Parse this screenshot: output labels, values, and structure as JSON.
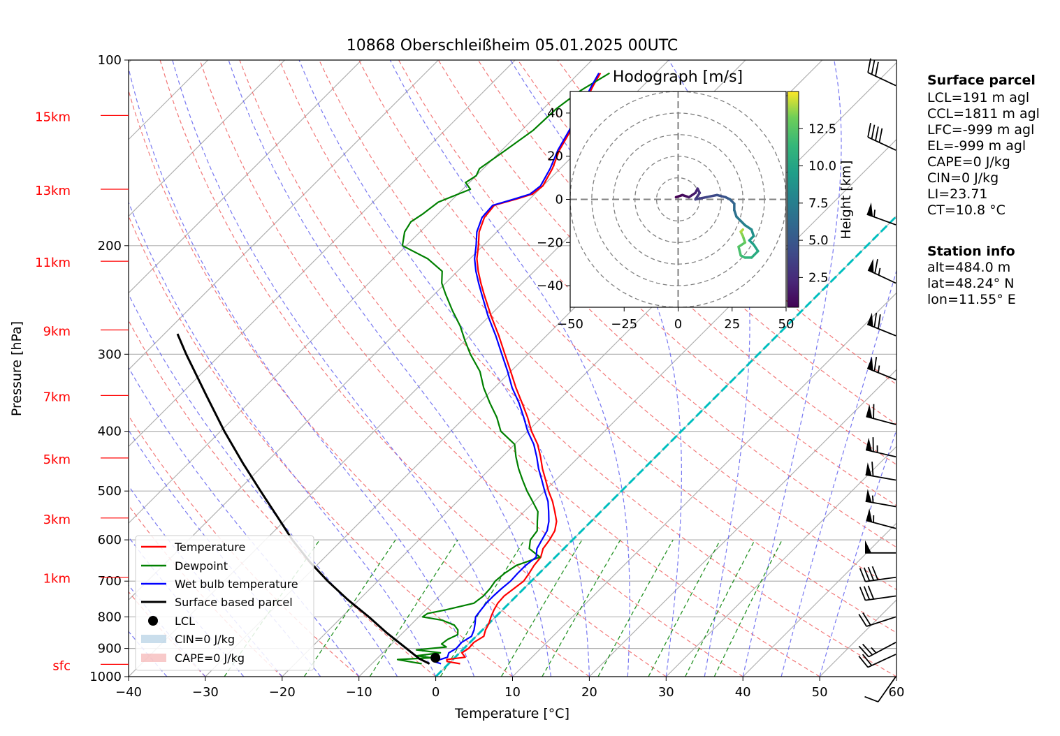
{
  "chart_data": {
    "type": "skewt",
    "title": "10868 Oberschleißheim 05.01.2025 00UTC",
    "xlabel": "Temperature [°C]",
    "ylabel": "Pressure [hPa]",
    "xlim": [
      -40,
      60
    ],
    "ylim": [
      1000,
      100
    ],
    "x_ticks": [
      -40,
      -30,
      -20,
      -10,
      0,
      10,
      20,
      30,
      40,
      50,
      60
    ],
    "x_tick_labels": [
      "−40",
      "−30",
      "−20",
      "−10",
      "0",
      "10",
      "20",
      "30",
      "40",
      "50",
      "60"
    ],
    "y_ticks": [
      100,
      200,
      300,
      400,
      500,
      600,
      700,
      800,
      900,
      1000
    ],
    "height_labels": [
      {
        "label": "15km",
        "p": 123
      },
      {
        "label": "13km",
        "p": 162
      },
      {
        "label": "11km",
        "p": 212
      },
      {
        "label": "9km",
        "p": 274
      },
      {
        "label": "7km",
        "p": 350
      },
      {
        "label": "5km",
        "p": 442
      },
      {
        "label": "3km",
        "p": 553
      },
      {
        "label": "1km",
        "p": 690
      },
      {
        "label": "sfc",
        "p": 955
      }
    ],
    "height_label_color": "#ff0000",
    "series": [
      {
        "name": "Temperature",
        "color": "#ff0000",
        "points": [
          [
            953,
            1.5
          ],
          [
            945,
            -0.5
          ],
          [
            938,
            -0.8
          ],
          [
            930,
            1.3
          ],
          [
            915,
            0.3
          ],
          [
            900,
            0.6
          ],
          [
            880,
            0.5
          ],
          [
            860,
            1.0
          ],
          [
            840,
            0.4
          ],
          [
            820,
            0.0
          ],
          [
            800,
            -0.6
          ],
          [
            780,
            -1.1
          ],
          [
            760,
            -1.5
          ],
          [
            740,
            -1.6
          ],
          [
            720,
            -1.3
          ],
          [
            700,
            -1.0
          ],
          [
            680,
            -1.3
          ],
          [
            660,
            -1.7
          ],
          [
            640,
            -1.9
          ],
          [
            620,
            -2.7
          ],
          [
            600,
            -3.0
          ],
          [
            580,
            -3.5
          ],
          [
            560,
            -4.5
          ],
          [
            540,
            -6.0
          ],
          [
            520,
            -7.6
          ],
          [
            500,
            -9.5
          ],
          [
            480,
            -11.3
          ],
          [
            460,
            -13.2
          ],
          [
            440,
            -15.0
          ],
          [
            420,
            -17.0
          ],
          [
            400,
            -19.5
          ],
          [
            380,
            -21.8
          ],
          [
            360,
            -24.4
          ],
          [
            340,
            -27.2
          ],
          [
            320,
            -30.0
          ],
          [
            300,
            -33.0
          ],
          [
            280,
            -36.2
          ],
          [
            260,
            -39.8
          ],
          [
            240,
            -43.5
          ],
          [
            230,
            -45.4
          ],
          [
            220,
            -47.3
          ],
          [
            210,
            -49.1
          ],
          [
            200,
            -50.6
          ],
          [
            190,
            -52.3
          ],
          [
            180,
            -53.5
          ],
          [
            172,
            -53.8
          ],
          [
            168,
            -51.7
          ],
          [
            165,
            -50.3
          ],
          [
            160,
            -50.0
          ],
          [
            150,
            -51.0
          ],
          [
            140,
            -52.5
          ],
          [
            130,
            -53.6
          ],
          [
            120,
            -55.0
          ],
          [
            110,
            -56.5
          ],
          [
            105,
            -57.2
          ]
        ]
      },
      {
        "name": "Dewpoint",
        "color": "#008000",
        "points": [
          [
            953,
            -3.5
          ],
          [
            945,
            -5.5
          ],
          [
            938,
            -7.2
          ],
          [
            932,
            -3.0
          ],
          [
            925,
            -5.2
          ],
          [
            915,
            -2.5
          ],
          [
            905,
            -6.0
          ],
          [
            895,
            -2.5
          ],
          [
            885,
            -3.5
          ],
          [
            870,
            -3.3
          ],
          [
            855,
            -2.6
          ],
          [
            840,
            -3.2
          ],
          [
            825,
            -4.3
          ],
          [
            810,
            -6.5
          ],
          [
            800,
            -9.5
          ],
          [
            790,
            -9.3
          ],
          [
            780,
            -7.5
          ],
          [
            760,
            -4.6
          ],
          [
            740,
            -4.3
          ],
          [
            720,
            -4.4
          ],
          [
            700,
            -4.7
          ],
          [
            680,
            -4.5
          ],
          [
            660,
            -4.0
          ],
          [
            640,
            -2.0
          ],
          [
            620,
            -4.5
          ],
          [
            600,
            -5.5
          ],
          [
            580,
            -5.8
          ],
          [
            560,
            -7.0
          ],
          [
            540,
            -8.2
          ],
          [
            520,
            -10.2
          ],
          [
            500,
            -12.3
          ],
          [
            480,
            -14.3
          ],
          [
            460,
            -16.3
          ],
          [
            440,
            -18.2
          ],
          [
            420,
            -20.0
          ],
          [
            400,
            -23.5
          ],
          [
            380,
            -25.8
          ],
          [
            360,
            -28.6
          ],
          [
            340,
            -31.4
          ],
          [
            320,
            -34.0
          ],
          [
            300,
            -37.5
          ],
          [
            285,
            -40.0
          ],
          [
            270,
            -42.5
          ],
          [
            255,
            -45.5
          ],
          [
            240,
            -48.5
          ],
          [
            230,
            -50.5
          ],
          [
            220,
            -52.0
          ],
          [
            210,
            -55.5
          ],
          [
            200,
            -60.5
          ],
          [
            190,
            -62.0
          ],
          [
            183,
            -62.5
          ],
          [
            178,
            -62.0
          ],
          [
            170,
            -61.5
          ],
          [
            162,
            -59.0
          ],
          [
            158,
            -60.5
          ],
          [
            154,
            -60.0
          ],
          [
            150,
            -60.5
          ],
          [
            140,
            -59.5
          ],
          [
            130,
            -58.5
          ],
          [
            120,
            -58.3
          ],
          [
            112,
            -57.5
          ],
          [
            105,
            -56.0
          ]
        ]
      },
      {
        "name": "Wet bulb temperature",
        "color": "#0000ff",
        "points": [
          [
            953,
            -1.0
          ],
          [
            945,
            -2.2
          ],
          [
            930,
            -1.0
          ],
          [
            915,
            -1.4
          ],
          [
            900,
            -1.0
          ],
          [
            880,
            -1.1
          ],
          [
            860,
            -0.6
          ],
          [
            840,
            -1.1
          ],
          [
            820,
            -1.8
          ],
          [
            800,
            -2.6
          ],
          [
            780,
            -2.8
          ],
          [
            760,
            -3.0
          ],
          [
            740,
            -3.0
          ],
          [
            720,
            -2.9
          ],
          [
            700,
            -2.7
          ],
          [
            680,
            -2.8
          ],
          [
            660,
            -2.8
          ],
          [
            640,
            -2.5
          ],
          [
            620,
            -3.5
          ],
          [
            600,
            -4.0
          ],
          [
            580,
            -4.5
          ],
          [
            560,
            -5.5
          ],
          [
            540,
            -6.8
          ],
          [
            520,
            -8.2
          ],
          [
            500,
            -10.0
          ],
          [
            480,
            -11.8
          ],
          [
            460,
            -13.7
          ],
          [
            440,
            -15.5
          ],
          [
            420,
            -17.5
          ],
          [
            400,
            -20.0
          ],
          [
            380,
            -22.3
          ],
          [
            360,
            -24.8
          ],
          [
            340,
            -27.7
          ],
          [
            320,
            -30.4
          ],
          [
            300,
            -33.4
          ],
          [
            280,
            -36.6
          ],
          [
            260,
            -40.2
          ],
          [
            240,
            -43.8
          ],
          [
            230,
            -45.7
          ],
          [
            220,
            -47.6
          ],
          [
            210,
            -49.4
          ],
          [
            200,
            -50.9
          ],
          [
            190,
            -52.6
          ],
          [
            180,
            -53.8
          ],
          [
            172,
            -54.0
          ],
          [
            168,
            -52.0
          ],
          [
            165,
            -50.6
          ],
          [
            160,
            -50.3
          ],
          [
            150,
            -51.3
          ],
          [
            140,
            -52.7
          ],
          [
            130,
            -53.8
          ],
          [
            120,
            -55.2
          ],
          [
            110,
            -56.7
          ],
          [
            105,
            -57.4
          ]
        ]
      },
      {
        "name": "Surface based parcel",
        "color": "#000000",
        "points": [
          [
            953,
            -2.5
          ],
          [
            935,
            -4.5
          ],
          [
            900,
            -7.5
          ],
          [
            850,
            -12.0
          ],
          [
            800,
            -16.5
          ],
          [
            750,
            -21.5
          ],
          [
            700,
            -26.5
          ],
          [
            650,
            -31.5
          ],
          [
            600,
            -36.5
          ],
          [
            550,
            -41.5
          ],
          [
            500,
            -47.0
          ],
          [
            450,
            -53.0
          ],
          [
            400,
            -59.5
          ],
          [
            350,
            -66.5
          ],
          [
            300,
            -74.5
          ],
          [
            278,
            -78.3
          ]
        ]
      }
    ],
    "lcl": {
      "name": "LCL",
      "p": 932,
      "t": -2.5
    },
    "legend_entries": [
      "Temperature",
      "Dewpoint",
      "Wet bulb temperature",
      "Surface based parcel",
      "LCL",
      "CIN=0 J/kg",
      "CAPE=0 J/kg"
    ],
    "legend_placement": "lower-left",
    "cin_color": "#a6c8e0",
    "cape_color": "#f4a6a6",
    "dry_adiabat_color": "#f06060",
    "moist_adiabat_color": "#6060ee",
    "mixing_ratio_color": "#008000",
    "zero_isotherm_color": "#00bfbf",
    "wind_barbs": [
      {
        "p": 110,
        "speed_kt": 30,
        "dir": 295
      },
      {
        "p": 140,
        "speed_kt": 40,
        "dir": 295
      },
      {
        "p": 185,
        "speed_kt": 55,
        "dir": 290
      },
      {
        "p": 230,
        "speed_kt": 65,
        "dir": 295
      },
      {
        "p": 280,
        "speed_kt": 70,
        "dir": 292
      },
      {
        "p": 330,
        "speed_kt": 65,
        "dir": 292
      },
      {
        "p": 390,
        "speed_kt": 60,
        "dir": 285
      },
      {
        "p": 440,
        "speed_kt": 65,
        "dir": 283
      },
      {
        "p": 480,
        "speed_kt": 60,
        "dir": 280
      },
      {
        "p": 530,
        "speed_kt": 55,
        "dir": 280
      },
      {
        "p": 575,
        "speed_kt": 55,
        "dir": 285
      },
      {
        "p": 630,
        "speed_kt": 50,
        "dir": 270
      },
      {
        "p": 690,
        "speed_kt": 40,
        "dir": 262
      },
      {
        "p": 740,
        "speed_kt": 30,
        "dir": 262
      },
      {
        "p": 800,
        "speed_kt": 20,
        "dir": 252
      },
      {
        "p": 880,
        "speed_kt": 25,
        "dir": 242
      },
      {
        "p": 920,
        "speed_kt": 20,
        "dir": 245
      },
      {
        "p": 1000,
        "speed_kt": 10,
        "dir": 215
      }
    ],
    "hodograph": {
      "title": "Hodograph [m/s]",
      "xlim": [
        -50,
        50
      ],
      "ylim": [
        -50,
        50
      ],
      "x_ticks": [
        -50,
        -25,
        0,
        25,
        50
      ],
      "x_tick_labels": [
        "−50",
        "−25",
        "0",
        "25",
        "50"
      ],
      "y_ticks": [
        40,
        20,
        0,
        -20,
        -40
      ],
      "y_tick_labels": [
        "40",
        "20",
        "0",
        "−20",
        "−40"
      ],
      "ring_radii": [
        10,
        20,
        30,
        40,
        50
      ],
      "colorbar_label": "Height [km]",
      "colorbar_ticks": [
        2.5,
        5.0,
        7.5,
        10.0,
        12.5
      ],
      "colorbar_tick_labels": [
        "2.5",
        "5.0",
        "7.5",
        "10.0",
        "12.5"
      ],
      "height_range": [
        0.5,
        15
      ],
      "points": [
        [
          -1,
          1,
          0.5
        ],
        [
          2,
          2,
          1.0
        ],
        [
          5,
          1,
          1.5
        ],
        [
          8,
          3,
          2.0
        ],
        [
          9,
          5,
          2.5
        ],
        [
          10,
          3,
          3.0
        ],
        [
          8,
          0,
          3.5
        ],
        [
          13,
          1,
          4.0
        ],
        [
          18,
          2,
          4.5
        ],
        [
          22,
          1,
          5.0
        ],
        [
          24,
          0,
          5.5
        ],
        [
          26,
          -2,
          6.0
        ],
        [
          26,
          -5,
          6.5
        ],
        [
          27,
          -8,
          7.0
        ],
        [
          29,
          -10,
          7.5
        ],
        [
          31,
          -12,
          8.0
        ],
        [
          34,
          -14,
          8.5
        ],
        [
          35,
          -17,
          9.0
        ],
        [
          33,
          -19,
          9.5
        ],
        [
          35,
          -21,
          10.0
        ],
        [
          37,
          -24,
          10.5
        ],
        [
          34,
          -27,
          11.0
        ],
        [
          31,
          -27,
          11.5
        ],
        [
          29,
          -26,
          12.0
        ],
        [
          28,
          -22,
          12.5
        ],
        [
          31,
          -20,
          13.0
        ],
        [
          30,
          -17,
          13.5
        ],
        [
          29,
          -15,
          14.0
        ],
        [
          30,
          -14,
          14.5
        ]
      ]
    }
  },
  "surface_parcel": {
    "heading": "Surface parcel",
    "lines": [
      "LCL=191 m agl",
      "CCL=1811 m agl",
      "LFC=-999 m agl",
      "EL=-999 m agl",
      "CAPE=0 J/kg",
      "CIN=0 J/kg",
      "LI=23.71",
      "CT=10.8 °C"
    ]
  },
  "station_info": {
    "heading": "Station info",
    "lines": [
      "alt=484.0 m",
      "lat=48.24° N",
      "lon=11.55° E"
    ]
  }
}
